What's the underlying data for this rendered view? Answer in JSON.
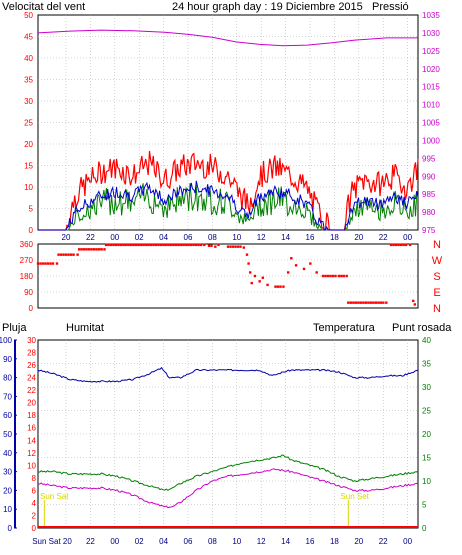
{
  "header": {
    "wind_title": "Velocitat del vent",
    "graph_title": "24 hour graph day : 19 Diciembre 2015",
    "pressure_title": "Pressió"
  },
  "bottom_header": {
    "rain_label": "Pluja",
    "humidity_label": "Humitat",
    "temperature_label": "Temperatura",
    "dewpoint_label": "Punt rosada"
  },
  "colors": {
    "wind_gust": "#ff0000",
    "wind_avg": "#0000cc",
    "wind_green": "#008000",
    "pressure": "#cc00cc",
    "direction": "#ff0000",
    "humidity": "#0000aa",
    "temperature": "#008000",
    "dewpoint": "#cc00cc",
    "rain": "#ff0000",
    "grid": "#aaaaaa",
    "marker": "#d8d800"
  },
  "chart_data": [
    {
      "type": "line",
      "id": "wind_pressure",
      "title": "24 hour graph day : 19 Diciembre 2015",
      "x_tick_labels": [
        "20",
        "22",
        "00",
        "02",
        "04",
        "06",
        "08",
        "10",
        "12",
        "14",
        "16",
        "18",
        "20",
        "22",
        "00"
      ],
      "left_axis": {
        "label": "Velocitat del vent",
        "ylim": [
          0,
          50
        ],
        "ticks": [
          0,
          5,
          10,
          15,
          20,
          25,
          30,
          35,
          40,
          45,
          50
        ]
      },
      "right_axis": {
        "label": "Pressió",
        "ylim": [
          975,
          1035
        ],
        "ticks": [
          975,
          980,
          985,
          990,
          995,
          1000,
          1005,
          1010,
          1015,
          1020,
          1025,
          1030,
          1035
        ]
      },
      "pressure_points": [
        [
          0,
          1030
        ],
        [
          2,
          1030.5
        ],
        [
          4,
          1030.8
        ],
        [
          6,
          1030.6
        ],
        [
          8,
          1030.2
        ],
        [
          9.5,
          1029.6
        ],
        [
          11,
          1028.8
        ],
        [
          12.5,
          1027.5
        ],
        [
          14,
          1026.8
        ],
        [
          15.5,
          1026.4
        ],
        [
          17,
          1026.6
        ],
        [
          18.5,
          1027.2
        ],
        [
          20,
          1028
        ],
        [
          22,
          1028.6
        ],
        [
          24,
          1028.6
        ]
      ],
      "wind_avg_profile": [
        [
          0,
          0
        ],
        [
          1.8,
          0
        ],
        [
          2.3,
          4
        ],
        [
          3,
          6
        ],
        [
          4,
          8
        ],
        [
          5,
          9
        ],
        [
          6,
          8
        ],
        [
          7,
          10
        ],
        [
          8,
          7
        ],
        [
          9,
          9
        ],
        [
          10,
          10
        ],
        [
          11,
          9
        ],
        [
          12,
          8
        ],
        [
          12.7,
          5
        ],
        [
          13.3,
          3
        ],
        [
          14,
          8
        ],
        [
          15,
          9
        ],
        [
          16,
          8
        ],
        [
          17,
          6
        ],
        [
          17.5,
          3
        ],
        [
          18,
          1
        ],
        [
          18.5,
          0
        ],
        [
          19.3,
          0
        ],
        [
          19.8,
          5
        ],
        [
          20.5,
          7
        ],
        [
          21.5,
          6
        ],
        [
          22.5,
          8
        ],
        [
          23.3,
          6
        ],
        [
          24,
          8
        ]
      ],
      "wind_gust_profile": [
        [
          0,
          0
        ],
        [
          1.8,
          0
        ],
        [
          2.3,
          7
        ],
        [
          3,
          10
        ],
        [
          4,
          13
        ],
        [
          5,
          14
        ],
        [
          6,
          12
        ],
        [
          7,
          15
        ],
        [
          8,
          11
        ],
        [
          9,
          14
        ],
        [
          10,
          15
        ],
        [
          11,
          14
        ],
        [
          12,
          12
        ],
        [
          12.7,
          8
        ],
        [
          13.3,
          5
        ],
        [
          14,
          12
        ],
        [
          15,
          14
        ],
        [
          16,
          12
        ],
        [
          17,
          9
        ],
        [
          17.5,
          5
        ],
        [
          18,
          2
        ],
        [
          18.5,
          0
        ],
        [
          19.3,
          0
        ],
        [
          19.8,
          8
        ],
        [
          20.5,
          11
        ],
        [
          21.5,
          10
        ],
        [
          22.5,
          12
        ],
        [
          23.3,
          9
        ],
        [
          24,
          14
        ]
      ]
    },
    {
      "type": "scatter",
      "id": "wind_direction",
      "y_axis": {
        "ylim": [
          0,
          360
        ],
        "ticks": [
          0,
          90,
          180,
          270,
          360
        ],
        "compass_labels": [
          "N",
          "W",
          "S",
          "E",
          "N"
        ]
      },
      "points": [
        [
          0,
          250
        ],
        [
          1.2,
          250
        ],
        [
          1.3,
          300
        ],
        [
          2.5,
          300
        ],
        [
          2.6,
          330
        ],
        [
          4.2,
          330
        ],
        [
          4.3,
          355
        ],
        [
          10.5,
          355
        ],
        [
          10.8,
          350
        ],
        [
          11.2,
          345
        ],
        [
          11.4,
          355
        ],
        [
          12,
          345
        ],
        [
          13,
          340
        ],
        [
          13.2,
          300
        ],
        [
          13.3,
          250
        ],
        [
          13.4,
          200
        ],
        [
          13.5,
          140
        ],
        [
          13.7,
          180
        ],
        [
          14,
          150
        ],
        [
          14.2,
          170
        ],
        [
          14.5,
          130
        ],
        [
          15,
          120
        ],
        [
          15.5,
          120
        ],
        [
          15.8,
          200
        ],
        [
          16,
          280
        ],
        [
          16.3,
          240
        ],
        [
          16.8,
          220
        ],
        [
          17.2,
          250
        ],
        [
          17.6,
          200
        ],
        [
          18,
          180
        ],
        [
          19,
          180
        ],
        [
          19.5,
          180
        ],
        [
          19.6,
          30
        ],
        [
          22,
          30
        ],
        [
          22.3,
          355
        ],
        [
          23.5,
          355
        ],
        [
          23.7,
          40
        ],
        [
          23.8,
          20
        ]
      ]
    },
    {
      "type": "line",
      "id": "humidity_temp",
      "left_axis_rain": {
        "label": "Pluja",
        "ylim": [
          0,
          30
        ],
        "ticks": [
          0,
          2,
          4,
          6,
          8,
          10,
          12,
          14,
          16,
          18,
          20,
          22,
          24,
          26,
          28,
          30
        ]
      },
      "left_axis_humidity": {
        "label": "Humitat",
        "ylim": [
          0,
          100
        ],
        "ticks": [
          0,
          10,
          20,
          30,
          40,
          50,
          60,
          70,
          80,
          90,
          100
        ]
      },
      "right_axis": {
        "label": "Temperatura",
        "ylim": [
          0,
          40
        ],
        "ticks": [
          0,
          5,
          10,
          15,
          20,
          25,
          30,
          35,
          40
        ]
      },
      "x_tick_labels": [
        "Sun Sat 20",
        "22",
        "00",
        "02",
        "04",
        "06",
        "08",
        "10",
        "12",
        "14",
        "16",
        "18",
        "20",
        "22",
        "00"
      ],
      "day_markers": [
        "Sun Sat",
        "Sun Set"
      ],
      "rain_mm": 0,
      "humidity_points": [
        [
          0,
          84
        ],
        [
          1,
          82
        ],
        [
          2,
          79
        ],
        [
          3,
          78
        ],
        [
          4,
          78
        ],
        [
          5,
          78
        ],
        [
          6,
          79
        ],
        [
          7,
          82
        ],
        [
          7.8,
          85
        ],
        [
          8.3,
          80
        ],
        [
          9,
          80
        ],
        [
          10,
          84
        ],
        [
          11,
          84
        ],
        [
          12,
          84
        ],
        [
          13,
          84
        ],
        [
          14,
          84
        ],
        [
          14.8,
          81
        ],
        [
          15.5,
          83
        ],
        [
          16,
          84
        ],
        [
          17,
          84
        ],
        [
          18,
          84
        ],
        [
          19,
          83
        ],
        [
          20,
          80
        ],
        [
          21,
          80
        ],
        [
          22,
          81
        ],
        [
          23,
          81
        ],
        [
          24,
          84
        ]
      ],
      "temperature_points": [
        [
          0,
          12
        ],
        [
          1,
          12
        ],
        [
          2,
          11.5
        ],
        [
          3,
          11.5
        ],
        [
          4,
          11.5
        ],
        [
          5,
          11
        ],
        [
          6,
          10
        ],
        [
          7,
          9
        ],
        [
          8,
          8
        ],
        [
          8.5,
          8.5
        ],
        [
          9,
          9.5
        ],
        [
          10,
          11
        ],
        [
          11,
          12
        ],
        [
          12,
          13
        ],
        [
          13,
          14
        ],
        [
          14,
          14.5
        ],
        [
          15,
          15
        ],
        [
          15.5,
          15.5
        ],
        [
          16,
          14.5
        ],
        [
          17,
          13.5
        ],
        [
          18,
          12.5
        ],
        [
          19,
          11
        ],
        [
          20,
          10
        ],
        [
          21,
          10.5
        ],
        [
          22,
          11
        ],
        [
          23,
          11.5
        ],
        [
          24,
          12
        ]
      ],
      "dewpoint_points": [
        [
          0,
          9.5
        ],
        [
          1,
          9
        ],
        [
          2,
          8.5
        ],
        [
          3,
          8.5
        ],
        [
          4,
          8.5
        ],
        [
          5,
          8
        ],
        [
          6,
          7
        ],
        [
          7,
          5.5
        ],
        [
          8,
          4.5
        ],
        [
          8.5,
          4.5
        ],
        [
          9,
          5.5
        ],
        [
          10,
          8
        ],
        [
          11,
          10
        ],
        [
          12,
          11
        ],
        [
          13,
          11.5
        ],
        [
          14,
          12
        ],
        [
          15,
          12.5
        ],
        [
          16,
          12
        ],
        [
          17,
          11
        ],
        [
          18,
          10
        ],
        [
          19,
          9
        ],
        [
          20,
          8
        ],
        [
          21,
          8
        ],
        [
          22,
          8.5
        ],
        [
          23,
          9
        ],
        [
          24,
          9.5
        ]
      ]
    }
  ]
}
